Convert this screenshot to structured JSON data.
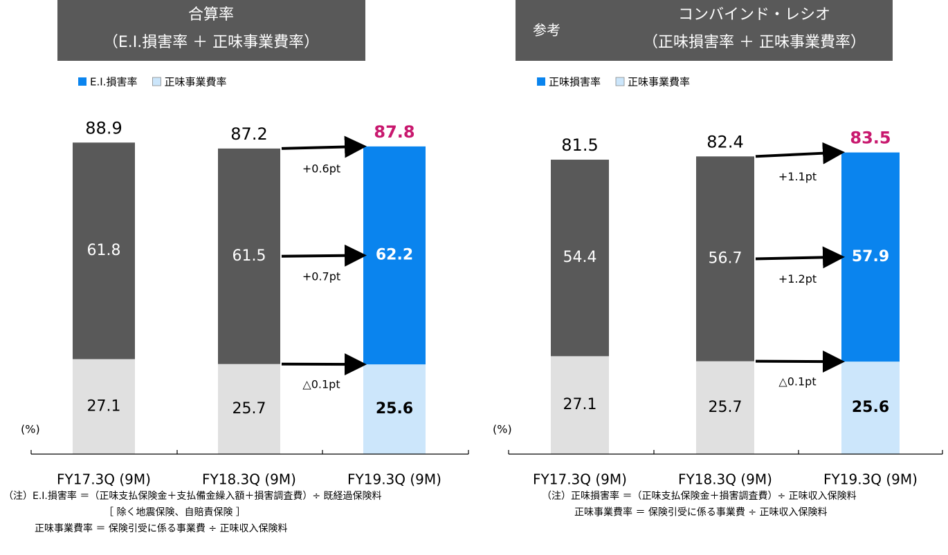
{
  "chart_data": [
    {
      "type": "stacked-bar",
      "title": "合算率",
      "subtitle": "（E.I.損害率 ＋ 正味事業費率）",
      "categories": [
        "FY17.3Q (9M)",
        "FY18.3Q (9M)",
        "FY19.3Q (9M)"
      ],
      "series": [
        {
          "name": "E.I.損害率",
          "color": "#0a84ee",
          "colors": [
            "#595959",
            "#595959",
            "#0a84ee"
          ],
          "values": [
            61.8,
            61.5,
            62.2
          ]
        },
        {
          "name": "正味事業費率",
          "color": "#cce6fb",
          "colors": [
            "#e0e0e0",
            "#e0e0e0",
            "#cce6fb"
          ],
          "values": [
            27.1,
            25.7,
            25.6
          ]
        }
      ],
      "totals": [
        88.9,
        87.2,
        87.8
      ],
      "highlight_color": "#c8186e",
      "changes": [
        "+0.6pt",
        "+0.7pt",
        "△0.1pt"
      ],
      "unit_label": "(%)",
      "ylim": [
        0,
        100
      ],
      "notes": [
        "（注）E.I.損害率 ＝（正味支払保険金＋支払備金繰入額＋損害調査費）÷ 既経過保険料",
        "［ 除く地震保険、自賠責保険 ］",
        "正味事業費率 ＝ 保険引受に係る事業費 ÷ 正味収入保険料"
      ]
    },
    {
      "type": "stacked-bar",
      "tag": "参考",
      "title": "コンバインド・レシオ",
      "subtitle": "（正味損害率 ＋ 正味事業費率）",
      "categories": [
        "FY17.3Q (9M)",
        "FY18.3Q (9M)",
        "FY19.3Q (9M)"
      ],
      "series": [
        {
          "name": "正味損害率",
          "color": "#0a84ee",
          "colors": [
            "#595959",
            "#595959",
            "#0a84ee"
          ],
          "values": [
            54.4,
            56.7,
            57.9
          ]
        },
        {
          "name": "正味事業費率",
          "color": "#cce6fb",
          "colors": [
            "#e0e0e0",
            "#e0e0e0",
            "#cce6fb"
          ],
          "values": [
            27.1,
            25.7,
            25.6
          ]
        }
      ],
      "totals": [
        81.5,
        82.4,
        83.5
      ],
      "highlight_color": "#c8186e",
      "changes": [
        "+1.1pt",
        "+1.2pt",
        "△0.1pt"
      ],
      "unit_label": "(%)",
      "ylim": [
        0,
        97
      ],
      "notes": [
        "（注）正味損害率 ＝（正味支払保険金＋損害調査費）÷ 正味収入保険料",
        "正味事業費率 ＝ 保険引受に係る事業費 ÷ 正味収入保険料"
      ]
    }
  ]
}
